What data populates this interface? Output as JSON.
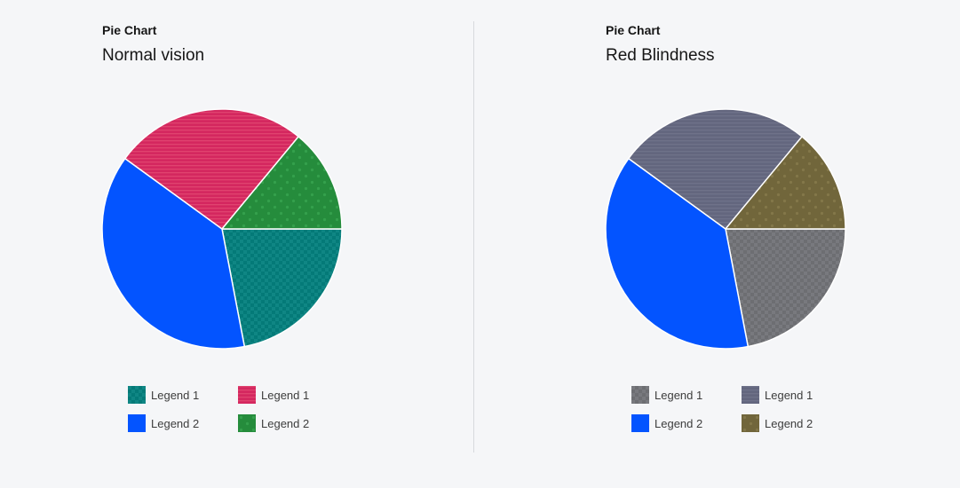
{
  "charts": [
    {
      "eyebrow": "Pie Chart",
      "title": "Normal vision",
      "legend": [
        {
          "label": "Legend 1",
          "pattern": "teal"
        },
        {
          "label": "Legend 1",
          "pattern": "pink"
        },
        {
          "label": "Legend 2",
          "pattern": "blue"
        },
        {
          "label": "Legend 2",
          "pattern": "green"
        }
      ]
    },
    {
      "eyebrow": "Pie Chart",
      "title": "Red Blindness",
      "legend": [
        {
          "label": "Legend 1",
          "pattern": "grayA"
        },
        {
          "label": "Legend 1",
          "pattern": "slate"
        },
        {
          "label": "Legend 2",
          "pattern": "blue"
        },
        {
          "label": "Legend 2",
          "pattern": "olive"
        }
      ]
    }
  ],
  "chart_data": [
    {
      "type": "pie",
      "title": "Normal vision",
      "slices": [
        {
          "value": 22,
          "color": "#047a78",
          "pattern": "teal"
        },
        {
          "value": 38,
          "color": "#0354ff",
          "pattern": "blue"
        },
        {
          "value": 26,
          "color": "#d4275f",
          "pattern": "pink"
        },
        {
          "value": 14,
          "color": "#258c3c",
          "pattern": "green"
        }
      ]
    },
    {
      "type": "pie",
      "title": "Red Blindness",
      "slices": [
        {
          "value": 22,
          "color": "#6d6e72",
          "pattern": "grayA"
        },
        {
          "value": 38,
          "color": "#0354ff",
          "pattern": "blue"
        },
        {
          "value": 26,
          "color": "#63667e",
          "pattern": "slate"
        },
        {
          "value": 14,
          "color": "#71663b",
          "pattern": "olive"
        }
      ]
    }
  ]
}
